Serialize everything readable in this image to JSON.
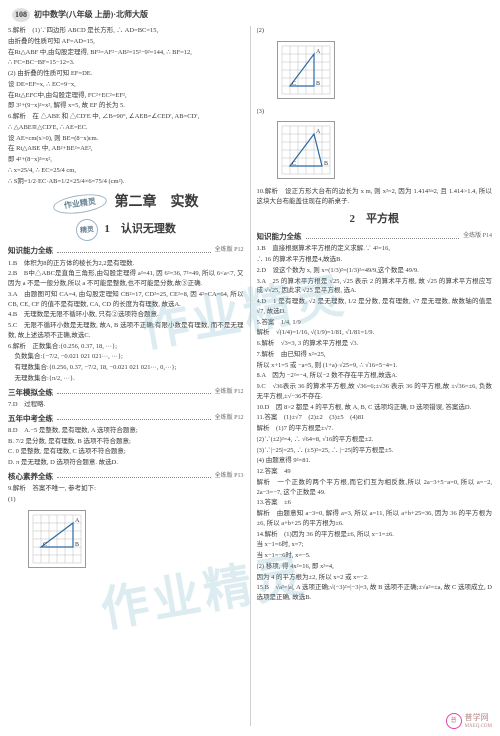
{
  "header": {
    "page_num": "108",
    "book_title": "初中数学(八年级 上册)·北师大版"
  },
  "left_col": {
    "top_paragraphs": [
      "5.解析　(1)∵四边形 ABCD 是长方形, ∴ AD=BC=15,",
      "由折叠的性质可知 AF=AD=15,",
      "在Rt△ABF 中,由勾股定理得, BF²=AF²−AB²=15²−9²=144, ∴ BF=12,",
      "∴ FC=BC−BF=15−12=3.",
      "(2) 由折叠的性质可知 EF=DE.",
      "设 DE=EF=x, ∴ EC=9−x,",
      "在Rt△EFC中,由勾股定理得, FC²+EC²=EF²,",
      "即 3²+(9−x)²=x², 解得 x=5, 故 EF 的长为 5.",
      "6.解析　在 △ABE 和 △CD′E 中, ∠B=90°, ∠AEB=∠CED′, AB=CD′,",
      "∴ △ABE≌△CD′E, ∴ AE=EC.",
      "设 AE=cm(x>0), 则 BE=(8−x)cm.",
      "在 Rt△ABE 中, AB²+BE²=AE²,",
      "即 4²+(8−x)²=x²,",
      "∴ x=25/4, ∴ EC=25/4 cm,",
      "∴ S阴=1/2·EC·AB=1/2×25/4×6=75/4 (cm²)."
    ],
    "chapter": "第二章　实数",
    "chapter_stamp": "作业精灵",
    "section1": "1　认识无理数",
    "section1_stamp": "精灵",
    "bands": [
      {
        "label": "知识能力全练",
        "ref": "全练版 P12"
      }
    ],
    "knowledge_items": [
      "1.B　体积为8的正方体的棱长为2,2是有理数.",
      "2.B　B中△ABC是直角三角形,由勾股定理得 a²=41, 因 6²=36, 7²=49, 所以 6<a<7, 又因为 a 不是一般分数,所以 a 不可能是整数,也不可能是分数,故③正确.",
      "3.A　由题图可知 CA=4, 由勾股定理知 CB²=17, CD²=25, CE²=8, 因 4²=CA=64, 所以 CB, CE, CF 的值不是有理数, CA, CD 的长度为有理数, 故选A.",
      "4.B　无理数是无限不循环小数, 只有②选项符合题意.",
      "5.C　无限不循环小数是无理数, 故A, B 选项不正确;有限小数是有理数, 而不是无理数, 故上述选项不正确,故选C.",
      "6.解析　正数集合:{0.256, 0.37, 18, ···};",
      "负数集合:{−7/2, −0.021 021 021···, ···};",
      "有理数集合:{0.256, 0.37, −7/2, 18, −0.021 021 021···, 0,···};",
      "无理数集合:{π/2, ···}."
    ],
    "band3": {
      "label": "三年模拟全练",
      "ref": "全练版 P12"
    },
    "three_year": [
      "7.D　过程略."
    ],
    "band5": {
      "label": "五年中考全练",
      "ref": "全练版 P12"
    },
    "five_year": [
      "8.D　A.−5 是整数, 是有理数, A 选项符合题意;",
      "B. 7/2 是分数, 是有理数, B 选项不符合题意;",
      "C. 0 是整数, 是有理数, C 选项不符合题意;",
      "D. π 是无理数, D 选项符合题意. 故选D."
    ],
    "band_core": {
      "label": "核心素养全练",
      "ref": "全练版 P13"
    },
    "core_items": [
      "9.解析　答案不唯一, 参考如下:",
      "(1)"
    ],
    "fig1": {
      "grid_size": 6,
      "cell": 8,
      "triangle": [
        [
          1,
          4
        ],
        [
          5,
          4
        ],
        [
          5,
          1
        ]
      ],
      "labels": {
        "A": [
          5,
          1
        ],
        "B": [
          5,
          4
        ],
        "C": [
          1,
          4
        ]
      },
      "line_color": "#2a6aa5"
    }
  },
  "right_col": {
    "top_labels": [
      "(2)",
      "(3)"
    ],
    "fig2": {
      "grid_size": 6,
      "cell": 8,
      "triangle": [
        [
          1,
          5
        ],
        [
          4,
          5
        ],
        [
          4,
          1
        ]
      ],
      "labels": {
        "A": [
          4,
          1
        ],
        "B": [
          4,
          5
        ],
        "C": [
          1,
          5
        ]
      },
      "line_color": "#2a6aa5"
    },
    "fig3": {
      "grid_size": 6,
      "cell": 8,
      "triangle": [
        [
          1,
          5
        ],
        [
          4,
          1
        ],
        [
          5,
          5
        ]
      ],
      "labels": {
        "A": [
          4,
          1
        ],
        "B": [
          5,
          5
        ],
        "C": [
          1,
          5
        ]
      },
      "line_color": "#2a6aa5"
    },
    "para10": "10.解析　设正方形大台布的边长为 x m, 则 x²=2, 因为 1.414²≈2, 且 1.414>1.4, 所以这块大台布能盖住现在的新桌子.",
    "section2": "2　平方根",
    "band_k": {
      "label": "知识能力全练",
      "ref": "全练版 P14"
    },
    "k_items": [
      "1.B　直接根据算术平方根的定义求解.∵ 4²=16,",
      "∴ 16 的算术平方根是4,故选B.",
      "2.D　设这个数为 x, 则 x=(1/3)²=(1/3)²=49/9,这个数是 49/9.",
      "3.A　25 的算术平方根是 √25, √25 表示 2 的算术平方根, 故 √25 的算术平方根应写成 √√25, 因此求 √25 是平方根, 选A.",
      "4.D　1 是有理数, √2 是无理数, 1/2 是分数, 是有理数, √7 是无理数, 故数轴的值是 √7, 故选D.",
      "5.答案　1/4, 1/9",
      "解析　√(1/4)=1/16, √(1/9)=1/81, √1/81=1/9.",
      "6.解析　√3=3, 3 的算术平方根是 √3.",
      "7.解析　由已知得 x²=25,",
      "所以 x+1=5 或 −a=5, 则 (1+a)·√25=9, ∴ √16=5−4=1.",
      "8.A　因为 −2²=−4, 所以−2 数不存在平方根,故选A.",
      "9.C　√36表示 36 的算术平方根,故 √36=6;±√36 表示 36 的平方根,故 ±√36=±6, 负数无平方根,±√−36不存在.",
      "10.D　因 8>2 都是 4 的平方根, 故 A, B, C 选项均正确, D 选项错误, 答案选D.",
      "11.答案　(1)±√7　(2)±2　(3)±5　(4)81",
      "解析　(1)7 的平方根是±√7.",
      "(2)∵(±2)²=4, ∴ √64=8, √16的平方根是±2.",
      "(3)∵|−25|=25, ∴ (±5)²=25, ∴ |−25|的平方根是±5.",
      "(4) 由题意得 9²=81.",
      "12.答案　49",
      "解析　一个正数的两个平方根,而它们互为相反数,所以 2a−3+5−a=0, 所以 a=−2, 2a−3=−7, 这个正数是 49.",
      "13.答案　±6",
      "解析　由题意知 a−3=0, 解得 a=3, 所以 a=11, 所以 a+b+25=36, 因为 36 的平方根为±6, 所以 a+b+25 的平方根为±6.",
      "14.解析　(1)因为 36 的平方根是±6, 所以 x−1=±6.",
      "当 x−1=6时, x=7;",
      "当 x−1=−6时, x=−5.",
      "(2) 移项, 得 4x²=16, 即 x²=4,",
      "因为 4 的平方根为±2, 所以 x=2 或 x=−2.",
      "15.B　√a²=|a|, A 选项正确;√(−3)²=|−3|=3, 故 B 选项不正确;±√a²=±a, 故 C 选项成立, D 选项是正确, 故选B."
    ]
  },
  "footer": {
    "logo_text": "普学网",
    "url": "MXEQ.COM"
  },
  "styling": {
    "text_color": "#3a3a3a",
    "watermark_color": "rgba(120,180,200,0.25)",
    "grid_stroke": "#bbbbbb",
    "triangle_stroke": "#2a6aa5"
  }
}
